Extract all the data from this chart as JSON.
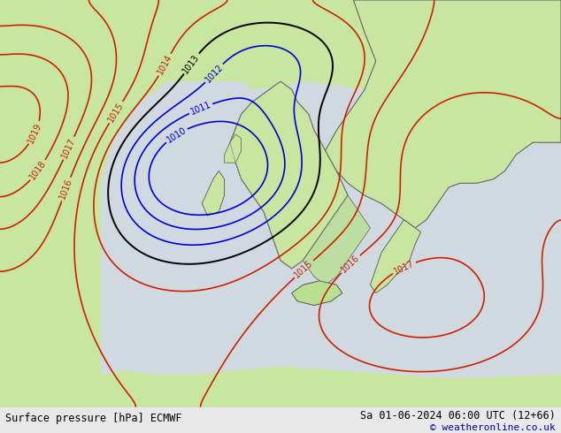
{
  "title_left": "Surface pressure [hPa] ECMWF",
  "title_right": "Sa 01-06-2024 06:00 UTC (12+66)",
  "copyright": "© weatheronline.co.uk",
  "bg_color": "#c8e6a0",
  "sea_color": "#d0d8e0",
  "land_color": "#c8e6a0",
  "text_color_black": "#000000",
  "text_color_blue": "#0000cc",
  "text_color_red": "#cc0000",
  "figsize": [
    6.34,
    4.9
  ],
  "dpi": 100,
  "bottom_bar_color": "#e8e8e8",
  "bottom_bar_height": 0.06
}
